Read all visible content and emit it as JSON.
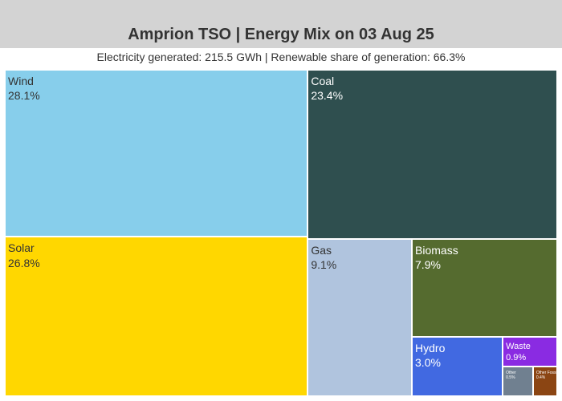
{
  "chart_data": {
    "type": "treemap",
    "title": "Amprion TSO | Energy Mix on 03 Aug 25",
    "subtitle": "Electricity generated: 215.5 GWh | Renewable share of generation: 66.3%",
    "items": [
      {
        "name": "Wind",
        "share": 28.1,
        "label": "28.1%",
        "color": "#87ceeb",
        "text_color": "#333333"
      },
      {
        "name": "Solar",
        "share": 26.8,
        "label": "26.8%",
        "color": "#ffd700",
        "text_color": "#333333"
      },
      {
        "name": "Coal",
        "share": 23.4,
        "label": "23.4%",
        "color": "#2f4f4f",
        "text_color": "#ffffff"
      },
      {
        "name": "Gas",
        "share": 9.1,
        "label": "9.1%",
        "color": "#b0c4de",
        "text_color": "#333333"
      },
      {
        "name": "Biomass",
        "share": 7.9,
        "label": "7.9%",
        "color": "#556b2f",
        "text_color": "#ffffff"
      },
      {
        "name": "Hydro",
        "share": 3.0,
        "label": "3.0%",
        "color": "#4169e1",
        "text_color": "#ffffff"
      },
      {
        "name": "Waste",
        "share": 0.9,
        "label": "0.9%",
        "color": "#8a2be2",
        "text_color": "#ffffff"
      },
      {
        "name": "Other",
        "share": 0.5,
        "label": "0.5%",
        "color": "#708090",
        "text_color": "#ffffff"
      },
      {
        "name": "Other Fossil",
        "share": 0.4,
        "label": "0.4%",
        "color": "#8b4513",
        "text_color": "#ffffff"
      }
    ]
  }
}
